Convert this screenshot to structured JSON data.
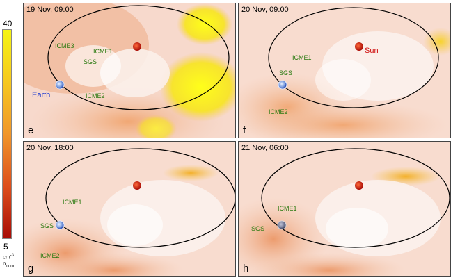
{
  "colorbar": {
    "max_label": "40",
    "min_label": "5",
    "unit_label": "cm",
    "unit_exp": "-3",
    "quantity_label": "n",
    "quantity_sub": "norm"
  },
  "panels": [
    {
      "time": "19 Nov, 09:00",
      "letter": "e",
      "labels": {
        "icme3": "ICME3",
        "icme1": "ICME1",
        "sgs": "SGS",
        "icme2": "ICME2",
        "earth": "Earth"
      }
    },
    {
      "time": "20 Nov, 09:00",
      "letter": "f",
      "labels": {
        "icme1": "ICME1",
        "sgs": "SGS",
        "icme2": "ICME2",
        "sun": "Sun"
      }
    },
    {
      "time": "20 Nov, 18:00",
      "letter": "g",
      "labels": {
        "icme1": "ICME1",
        "sgs": "SGS",
        "icme2": "ICME2"
      }
    },
    {
      "time": "21 Nov, 06:00",
      "letter": "h",
      "labels": {
        "icme1": "ICME1",
        "sgs": "SGS"
      }
    }
  ]
}
